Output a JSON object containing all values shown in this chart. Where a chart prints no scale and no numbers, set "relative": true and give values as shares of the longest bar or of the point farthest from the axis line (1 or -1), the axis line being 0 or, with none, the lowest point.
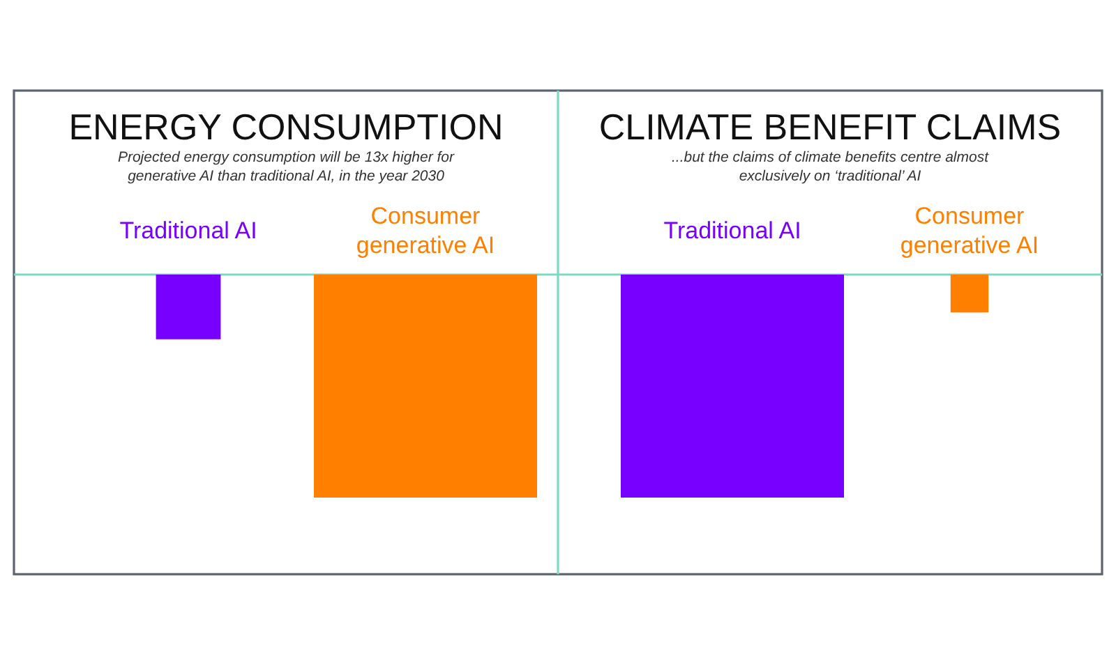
{
  "chart_data": [
    {
      "type": "bar",
      "title": "ENERGY CONSUMPTION",
      "subtitle": "Projected energy consumption will be 13x higher for generative AI than traditional AI, in the year 2030",
      "categories": [
        "Traditional AI",
        "Consumer generative AI"
      ],
      "values": [
        -0.29,
        -1
      ],
      "colors": [
        "#7700ff",
        "#ff7f00"
      ],
      "relative": true
    },
    {
      "type": "bar",
      "title": "CLIMATE BENEFIT CLAIMS",
      "subtitle": "...but the claims of climate benefits centre almost exclusively on ‘traditional’ AI",
      "categories": [
        "Traditional AI",
        "Consumer generative AI"
      ],
      "values": [
        -1,
        -0.17
      ],
      "colors": [
        "#7700ff",
        "#ff7f00"
      ],
      "relative": true
    }
  ]
}
